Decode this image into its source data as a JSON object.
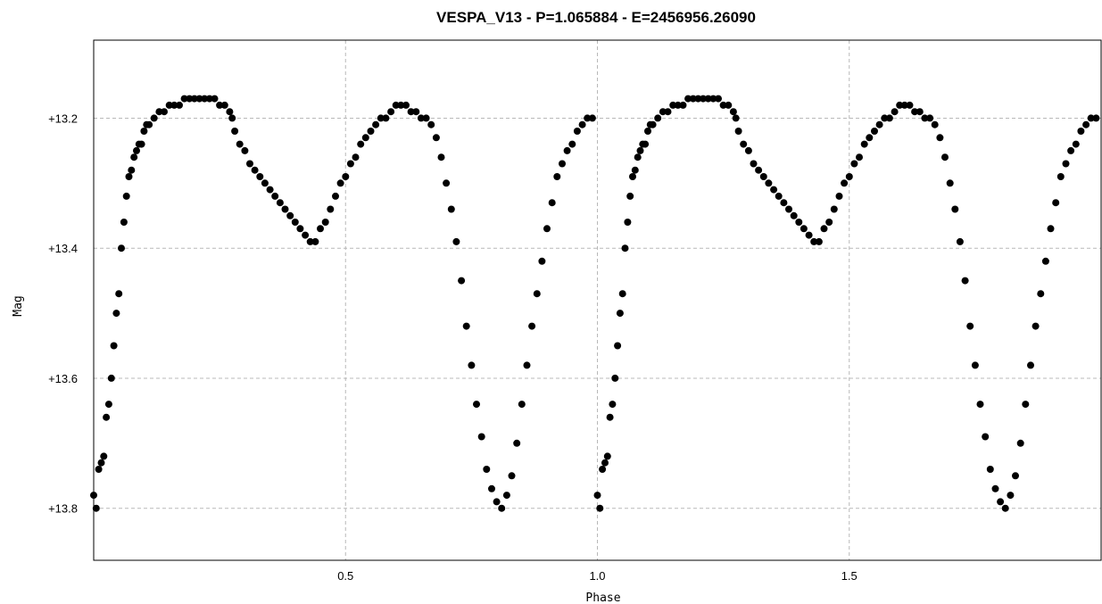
{
  "chart_data": {
    "type": "scatter",
    "title": "VESPA_V13  -  P=1.065884  -  E=2456956.26090",
    "xlabel": "Phase",
    "ylabel": "Mag",
    "xlim": [
      0.0,
      2.0
    ],
    "ylim": [
      13.88,
      13.08
    ],
    "y_inverted": true,
    "grid": true,
    "marker_color": "#000000",
    "x_ticks": [
      {
        "value": 0.5,
        "label": "0.5"
      },
      {
        "value": 1.0,
        "label": "1.0"
      },
      {
        "value": 1.5,
        "label": "1.5"
      }
    ],
    "y_ticks": [
      {
        "value": 13.2,
        "label": "+13.2"
      },
      {
        "value": 13.4,
        "label": "+13.4"
      },
      {
        "value": 13.6,
        "label": "+13.6"
      },
      {
        "value": 13.8,
        "label": "+13.8"
      }
    ],
    "series": [
      {
        "phase_repeat": 1.0,
        "points": [
          [
            0.0,
            13.78
          ],
          [
            0.005,
            13.8
          ],
          [
            0.01,
            13.74
          ],
          [
            0.015,
            13.73
          ],
          [
            0.02,
            13.72
          ],
          [
            0.025,
            13.66
          ],
          [
            0.03,
            13.64
          ],
          [
            0.035,
            13.6
          ],
          [
            0.04,
            13.55
          ],
          [
            0.045,
            13.5
          ],
          [
            0.05,
            13.47
          ],
          [
            0.055,
            13.4
          ],
          [
            0.06,
            13.36
          ],
          [
            0.065,
            13.32
          ],
          [
            0.07,
            13.29
          ],
          [
            0.075,
            13.28
          ],
          [
            0.08,
            13.26
          ],
          [
            0.085,
            13.25
          ],
          [
            0.09,
            13.24
          ],
          [
            0.095,
            13.24
          ],
          [
            0.1,
            13.22
          ],
          [
            0.105,
            13.21
          ],
          [
            0.11,
            13.21
          ],
          [
            0.12,
            13.2
          ],
          [
            0.13,
            13.19
          ],
          [
            0.14,
            13.19
          ],
          [
            0.15,
            13.18
          ],
          [
            0.16,
            13.18
          ],
          [
            0.17,
            13.18
          ],
          [
            0.18,
            13.17
          ],
          [
            0.19,
            13.17
          ],
          [
            0.2,
            13.17
          ],
          [
            0.21,
            13.17
          ],
          [
            0.22,
            13.17
          ],
          [
            0.23,
            13.17
          ],
          [
            0.24,
            13.17
          ],
          [
            0.25,
            13.18
          ],
          [
            0.26,
            13.18
          ],
          [
            0.27,
            13.19
          ],
          [
            0.275,
            13.2
          ],
          [
            0.28,
            13.22
          ],
          [
            0.29,
            13.24
          ],
          [
            0.3,
            13.25
          ],
          [
            0.31,
            13.27
          ],
          [
            0.32,
            13.28
          ],
          [
            0.33,
            13.29
          ],
          [
            0.34,
            13.3
          ],
          [
            0.35,
            13.31
          ],
          [
            0.36,
            13.32
          ],
          [
            0.37,
            13.33
          ],
          [
            0.38,
            13.34
          ],
          [
            0.39,
            13.35
          ],
          [
            0.4,
            13.36
          ],
          [
            0.41,
            13.37
          ],
          [
            0.42,
            13.38
          ],
          [
            0.43,
            13.39
          ],
          [
            0.44,
            13.39
          ],
          [
            0.45,
            13.37
          ],
          [
            0.46,
            13.36
          ],
          [
            0.47,
            13.34
          ],
          [
            0.48,
            13.32
          ],
          [
            0.49,
            13.3
          ],
          [
            0.5,
            13.29
          ],
          [
            0.51,
            13.27
          ],
          [
            0.52,
            13.26
          ],
          [
            0.53,
            13.24
          ],
          [
            0.54,
            13.23
          ],
          [
            0.55,
            13.22
          ],
          [
            0.56,
            13.21
          ],
          [
            0.57,
            13.2
          ],
          [
            0.58,
            13.2
          ],
          [
            0.59,
            13.19
          ],
          [
            0.6,
            13.18
          ],
          [
            0.61,
            13.18
          ],
          [
            0.62,
            13.18
          ],
          [
            0.63,
            13.19
          ],
          [
            0.64,
            13.19
          ],
          [
            0.65,
            13.2
          ],
          [
            0.66,
            13.2
          ],
          [
            0.67,
            13.21
          ],
          [
            0.68,
            13.23
          ],
          [
            0.69,
            13.26
          ],
          [
            0.7,
            13.3
          ],
          [
            0.71,
            13.34
          ],
          [
            0.72,
            13.39
          ],
          [
            0.73,
            13.45
          ],
          [
            0.74,
            13.52
          ],
          [
            0.75,
            13.58
          ],
          [
            0.76,
            13.64
          ],
          [
            0.77,
            13.69
          ],
          [
            0.78,
            13.74
          ],
          [
            0.79,
            13.77
          ],
          [
            0.8,
            13.79
          ],
          [
            0.81,
            13.8
          ],
          [
            0.82,
            13.78
          ],
          [
            0.83,
            13.75
          ],
          [
            0.84,
            13.7
          ],
          [
            0.85,
            13.64
          ],
          [
            0.86,
            13.58
          ],
          [
            0.87,
            13.52
          ],
          [
            0.88,
            13.47
          ],
          [
            0.89,
            13.42
          ],
          [
            0.9,
            13.37
          ],
          [
            0.91,
            13.33
          ],
          [
            0.92,
            13.29
          ],
          [
            0.93,
            13.27
          ],
          [
            0.94,
            13.25
          ],
          [
            0.95,
            13.24
          ],
          [
            0.96,
            13.22
          ],
          [
            0.97,
            13.21
          ],
          [
            0.98,
            13.2
          ],
          [
            0.99,
            13.2
          ]
        ]
      }
    ]
  }
}
